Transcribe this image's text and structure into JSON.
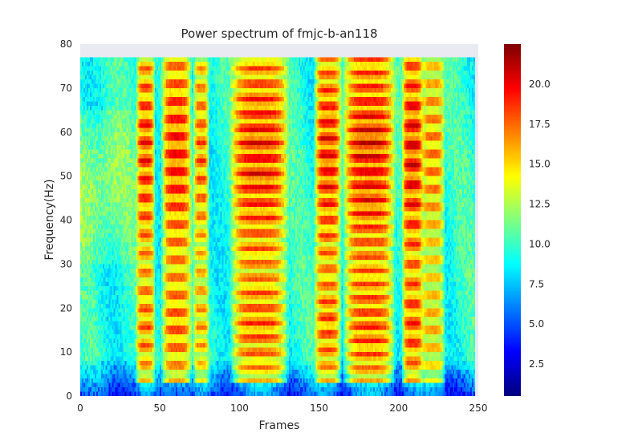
{
  "chart_data": {
    "type": "heatmap",
    "title": "Power spectrum of fmjc-b-an118",
    "xlabel": "Frames",
    "ylabel": "Frequency(Hz)",
    "xlim": [
      0,
      250
    ],
    "ylim": [
      0,
      80
    ],
    "data_extent": {
      "x": [
        0,
        248
      ],
      "y": [
        0,
        77
      ]
    },
    "xticks": [
      0,
      50,
      100,
      150,
      200,
      250
    ],
    "yticks": [
      0,
      10,
      20,
      30,
      40,
      50,
      60,
      70,
      80
    ],
    "colormap": "jet",
    "background_color": "#eaeaf2",
    "colorbar": {
      "range": [
        0.5,
        22.5
      ],
      "ticks": [
        "2.5",
        "5.0",
        "7.5",
        "10.0",
        "12.5",
        "15.0",
        "17.5",
        "20.0"
      ],
      "tick_values": [
        2.5,
        5.0,
        7.5,
        10.0,
        12.5,
        15.0,
        17.5,
        20.0
      ]
    },
    "voiced_segments": [
      {
        "start": 36,
        "end": 46,
        "peak": 20.5,
        "harmonic_spacing": 4.2
      },
      {
        "start": 52,
        "end": 69,
        "peak": 20.8,
        "harmonic_spacing": 4.0
      },
      {
        "start": 72,
        "end": 80,
        "peak": 19.0,
        "harmonic_spacing": 4.2
      },
      {
        "start": 95,
        "end": 130,
        "peak": 21.0,
        "harmonic_spacing": 3.4
      },
      {
        "start": 148,
        "end": 163,
        "peak": 21.0,
        "harmonic_spacing": 3.7
      },
      {
        "start": 166,
        "end": 197,
        "peak": 21.5,
        "harmonic_spacing": 3.2
      },
      {
        "start": 203,
        "end": 215,
        "peak": 21.5,
        "harmonic_spacing": 4.5
      },
      {
        "start": 215,
        "end": 228,
        "peak": 18.5,
        "harmonic_spacing": 4.0
      }
    ]
  }
}
